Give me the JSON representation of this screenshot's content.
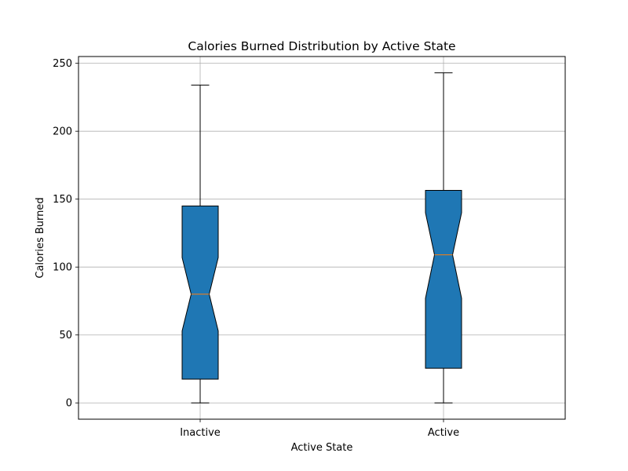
{
  "chart_data": {
    "type": "boxplot",
    "notched": true,
    "title": "Calories Burned Distribution by Active State",
    "xlabel": "Active State",
    "ylabel": "Calories Burned",
    "categories": [
      "Inactive",
      "Active"
    ],
    "ylim": [
      -12,
      255
    ],
    "yticks": [
      0,
      50,
      100,
      150,
      200,
      250
    ],
    "grid": true,
    "box_color": "#1f77b4",
    "median_color": "#ff7f0e",
    "boxes": [
      {
        "label": "Inactive",
        "whisker_low": 0,
        "q1": 17.5,
        "median": 80,
        "q3": 145,
        "whisker_high": 234,
        "notch_low": 53,
        "notch_high": 107
      },
      {
        "label": "Active",
        "whisker_low": 0,
        "q1": 25.5,
        "median": 109,
        "q3": 156.5,
        "whisker_high": 243,
        "notch_low": 77,
        "notch_high": 140
      }
    ]
  }
}
